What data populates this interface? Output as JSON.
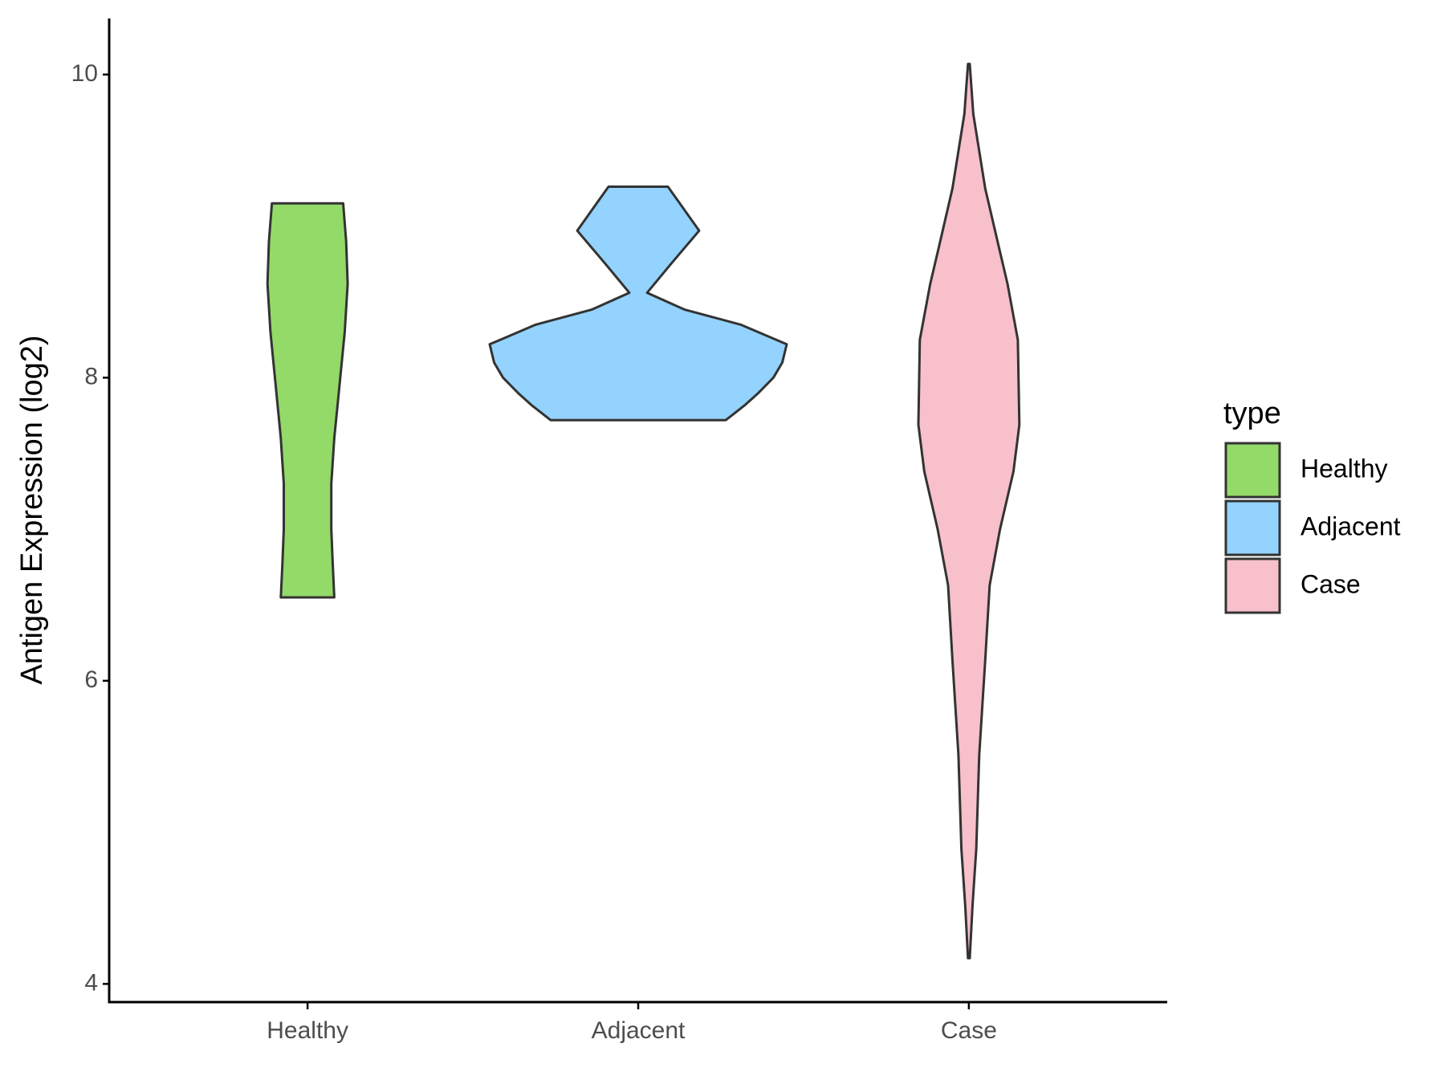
{
  "chart_data": {
    "type": "violin",
    "y_label": "Antigen Expression (log2)",
    "categories": [
      "Healthy",
      "Adjacent",
      "Case"
    ],
    "legend_title": "type",
    "legend_position": "right",
    "ylim": [
      3.88,
      10.37
    ],
    "yticks": [
      4,
      6,
      8,
      10
    ],
    "grid": false,
    "series": [
      {
        "name": "Healthy",
        "color": "#93da69",
        "y": [
          9.15,
          8.9,
          8.62,
          8.3,
          7.9,
          7.6,
          7.3,
          7.0,
          6.76,
          6.55
        ],
        "density": [
          0.24,
          0.26,
          0.27,
          0.25,
          0.21,
          0.18,
          0.16,
          0.16,
          0.17,
          0.18
        ]
      },
      {
        "name": "Adjacent",
        "color": "#94d3fd",
        "y": [
          9.26,
          9.15,
          8.97,
          8.75,
          8.56,
          8.45,
          8.35,
          8.22,
          8.1,
          8.0,
          7.9,
          7.82,
          7.72
        ],
        "density": [
          0.2,
          0.28,
          0.41,
          0.22,
          0.06,
          0.31,
          0.69,
          1.0,
          0.97,
          0.91,
          0.81,
          0.72,
          0.59
        ]
      },
      {
        "name": "Case",
        "color": "#f7c0cb",
        "y": [
          10.07,
          9.74,
          9.25,
          8.87,
          8.62,
          8.25,
          7.69,
          7.38,
          7.0,
          6.63,
          6.13,
          5.51,
          4.89,
          4.52,
          4.17
        ],
        "density": [
          0.006,
          0.03,
          0.11,
          0.2,
          0.26,
          0.33,
          0.34,
          0.3,
          0.21,
          0.14,
          0.11,
          0.07,
          0.05,
          0.025,
          0.006
        ]
      }
    ]
  }
}
